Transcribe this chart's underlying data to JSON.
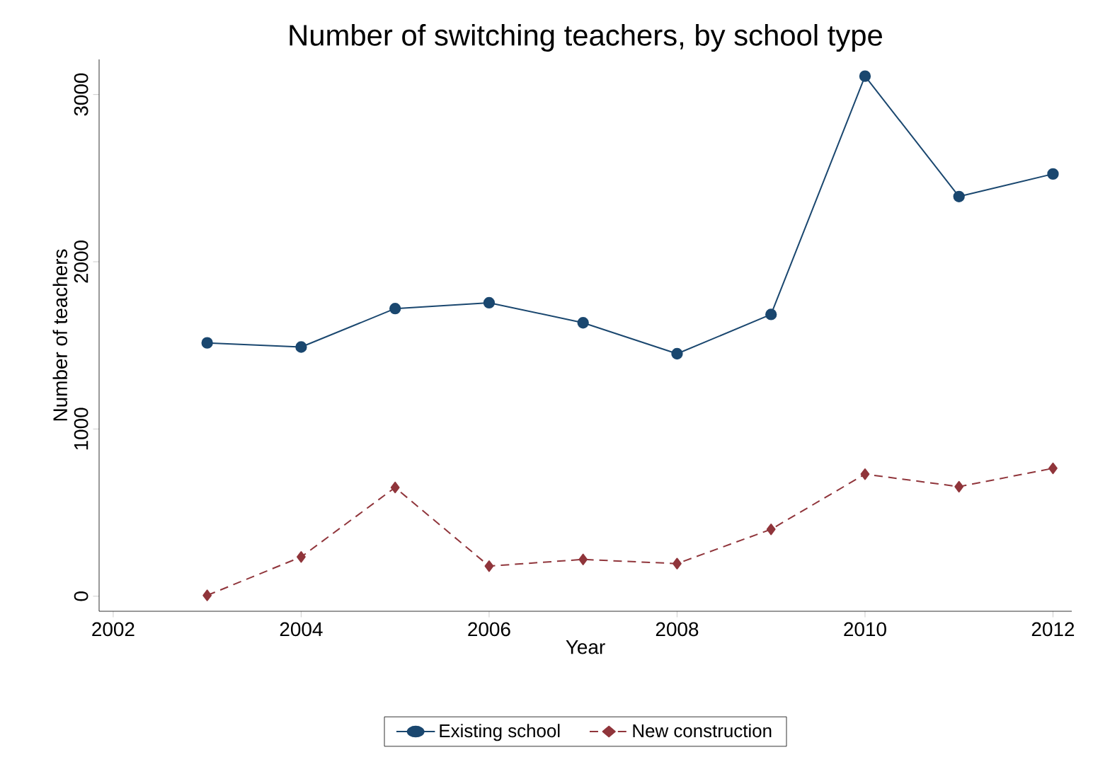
{
  "chart_data": {
    "type": "line",
    "title": "Number of switching teachers, by school type",
    "xlabel": "Year",
    "ylabel": "Number of teachers",
    "x": [
      2003,
      2004,
      2005,
      2006,
      2007,
      2008,
      2009,
      2010,
      2011,
      2012
    ],
    "series": [
      {
        "name": "Existing school",
        "color": "#1a476f",
        "marker": "circle",
        "line_style": "solid",
        "values": [
          1515,
          1490,
          1720,
          1755,
          1635,
          1450,
          1685,
          3110,
          2390,
          2525
        ]
      },
      {
        "name": "New construction",
        "color": "#90353b",
        "marker": "diamond",
        "line_style": "dashed",
        "values": [
          5,
          235,
          650,
          180,
          220,
          195,
          400,
          730,
          655,
          765
        ]
      }
    ],
    "xlim": [
      2001.85,
      2012.2
    ],
    "ylim": [
      -90,
      3210
    ],
    "xticks": [
      2002,
      2004,
      2006,
      2008,
      2010,
      2012
    ],
    "yticks": [
      0,
      1000,
      2000,
      3000
    ],
    "grid": false,
    "legend": "bottom"
  }
}
